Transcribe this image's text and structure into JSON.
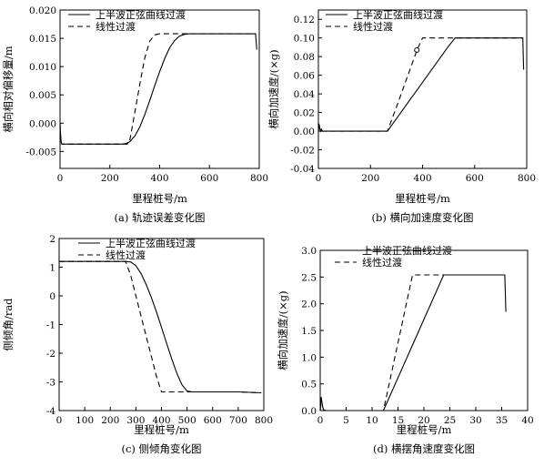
{
  "chart_data": [
    {
      "id": "a",
      "type": "line",
      "caption": "(a) 轨迹误差变化图",
      "xlabel": "里程桩号/m",
      "ylabel": "横向相对偏移量/m",
      "xlim": [
        0,
        800
      ],
      "ylim": [
        -0.008,
        0.02
      ],
      "xticks": [
        0,
        200,
        400,
        600,
        800
      ],
      "yticks": [
        -0.005,
        0.0,
        0.005,
        0.01,
        0.015,
        0.02
      ],
      "xtick_labels": [
        "0",
        "200",
        "400",
        "600",
        "800"
      ],
      "ytick_labels": [
        "-0.005",
        "0.000",
        "0.005",
        "0.010",
        "0.015",
        "0.020"
      ],
      "legend_position": "top-left",
      "series": [
        {
          "name": "上半波正弦曲线过渡",
          "style": "solid",
          "x": [
            0,
            2,
            5,
            8,
            12,
            20,
            50,
            100,
            150,
            200,
            250,
            265,
            280,
            300,
            320,
            340,
            360,
            380,
            400,
            420,
            440,
            460,
            480,
            500,
            520,
            540,
            560,
            600,
            650,
            700,
            750,
            780,
            785,
            790
          ],
          "y": [
            0.0,
            -0.002,
            -0.0035,
            -0.0037,
            -0.0037,
            -0.0037,
            -0.0037,
            -0.0037,
            -0.0037,
            -0.0037,
            -0.0037,
            -0.0036,
            -0.0033,
            -0.0023,
            -0.0007,
            0.0015,
            0.004,
            0.0066,
            0.0091,
            0.0114,
            0.0133,
            0.0146,
            0.0154,
            0.0157,
            0.0158,
            0.0158,
            0.0158,
            0.0158,
            0.0158,
            0.0158,
            0.0158,
            0.0158,
            0.0158,
            0.013
          ]
        },
        {
          "name": "线性过渡",
          "style": "dashed",
          "x": [
            0,
            2,
            5,
            8,
            12,
            50,
            100,
            150,
            200,
            250,
            270,
            280,
            300,
            320,
            340,
            360,
            380,
            400,
            420,
            450,
            500,
            600,
            700,
            785
          ],
          "y": [
            0.0,
            -0.002,
            -0.0035,
            -0.0037,
            -0.0037,
            -0.0037,
            -0.0037,
            -0.0037,
            -0.0037,
            -0.0037,
            -0.0037,
            -0.0031,
            0.0018,
            0.0068,
            0.0115,
            0.0145,
            0.0156,
            0.0158,
            0.0158,
            0.0158,
            0.0158,
            0.0158,
            0.0158,
            0.0158
          ]
        }
      ]
    },
    {
      "id": "b",
      "type": "line",
      "caption": "(b) 横向加速度变化图",
      "xlabel": "里程桩号/m",
      "ylabel": "横向加速度/(×g)",
      "xlim": [
        0,
        800
      ],
      "ylim": [
        -0.04,
        0.13
      ],
      "xticks": [
        0,
        200,
        400,
        600,
        800
      ],
      "yticks": [
        -0.04,
        -0.02,
        0.0,
        0.02,
        0.04,
        0.06,
        0.08,
        0.1,
        0.12
      ],
      "xtick_labels": [
        "0",
        "200",
        "400",
        "600",
        "800"
      ],
      "ytick_labels": [
        "-0.04",
        "-0.02",
        "0.00",
        "0.02",
        "0.04",
        "0.06",
        "0.08",
        "0.10",
        "0.12"
      ],
      "legend_position": "top-left",
      "series": [
        {
          "name": "上半波正弦曲线过渡",
          "style": "solid",
          "x": [
            0,
            2,
            5,
            8,
            12,
            15,
            20,
            60,
            120,
            200,
            265,
            300,
            350,
            400,
            450,
            500,
            525,
            600,
            700,
            780,
            785,
            788
          ],
          "y": [
            0.0,
            0.008,
            0.004,
            0.0,
            0.002,
            0.0,
            0.0,
            0.0,
            0.0,
            0.0,
            0.0,
            0.0135,
            0.033,
            0.0524,
            0.0718,
            0.0912,
            0.1,
            0.1,
            0.1,
            0.1,
            0.1,
            0.066
          ]
        },
        {
          "name": "线性过渡",
          "style": "dashed",
          "x": [
            0,
            2,
            5,
            8,
            12,
            15,
            20,
            100,
            200,
            265,
            300,
            340,
            380,
            400,
            450,
            550,
            650,
            785
          ],
          "y": [
            0.0,
            0.008,
            0.004,
            0.0,
            0.002,
            0.0,
            0.0,
            0.0,
            0.0,
            0.0,
            0.026,
            0.057,
            0.088,
            0.1,
            0.1,
            0.1,
            0.1,
            0.1
          ]
        }
      ],
      "markers": [
        {
          "x": 378,
          "y": 0.087
        }
      ]
    },
    {
      "id": "c",
      "type": "line",
      "caption": "(c) 侧倾角变化图",
      "xlabel": "里程桩号/m",
      "ylabel": "侧倾角/rad",
      "xlim": [
        0,
        800
      ],
      "ylim": [
        -4,
        2
      ],
      "xticks": [
        0,
        100,
        200,
        300,
        400,
        500,
        600,
        700,
        800
      ],
      "yticks": [
        -4,
        -3,
        -2,
        -1,
        0,
        1,
        2
      ],
      "xtick_labels": [
        "0",
        "100",
        "200",
        "300",
        "400",
        "500",
        "600",
        "700",
        "800"
      ],
      "ytick_labels": [
        "-4",
        "-3",
        "-2",
        "-1",
        "0",
        "1",
        "2"
      ],
      "legend_position": "top-right",
      "series": [
        {
          "name": "上半波正弦曲线过渡",
          "style": "solid",
          "x": [
            0,
            100,
            200,
            260,
            280,
            300,
            320,
            340,
            360,
            380,
            400,
            420,
            440,
            460,
            480,
            500,
            520,
            600,
            700,
            790
          ],
          "y": [
            1.2,
            1.2,
            1.2,
            1.2,
            1.18,
            1.05,
            0.78,
            0.4,
            -0.05,
            -0.55,
            -1.1,
            -1.65,
            -2.2,
            -2.7,
            -3.1,
            -3.32,
            -3.35,
            -3.35,
            -3.35,
            -3.38
          ]
        },
        {
          "name": "线性过渡",
          "style": "dashed",
          "x": [
            0,
            100,
            200,
            260,
            280,
            300,
            320,
            340,
            360,
            380,
            400,
            450,
            500,
            600,
            700,
            790
          ],
          "y": [
            1.2,
            1.2,
            1.2,
            1.2,
            0.7,
            0.0,
            -0.7,
            -1.4,
            -2.1,
            -2.8,
            -3.35,
            -3.35,
            -3.35,
            -3.35,
            -3.35,
            -3.38
          ]
        }
      ]
    },
    {
      "id": "d",
      "type": "line",
      "caption": "(d) 横摆角速度变化图",
      "xlabel": "里程桩号/m",
      "ylabel": "横向加速度/(×g)",
      "xlim": [
        0,
        40
      ],
      "ylim": [
        0,
        3.0
      ],
      "xticks": [
        0,
        5,
        10,
        15,
        20,
        25,
        30,
        35,
        40
      ],
      "yticks": [
        0,
        0.5,
        1.0,
        1.5,
        2.0,
        2.5,
        3.0
      ],
      "xtick_labels": [
        "0",
        "5",
        "10",
        "15",
        "20",
        "25",
        "30",
        "35",
        "40"
      ],
      "ytick_labels": [
        "0.0",
        "0.5",
        "1.0",
        "1.5",
        "2.0",
        "2.5",
        "3.0"
      ],
      "legend_position": "top-right",
      "series": [
        {
          "name": "上半波正弦曲线过渡",
          "style": "solid",
          "x": [
            0,
            0.2,
            0.4,
            0.6,
            1,
            5,
            10,
            12.2,
            18,
            23.8,
            28,
            33,
            35.6,
            35.8
          ],
          "y": [
            0,
            0.25,
            0.1,
            0.02,
            0,
            0,
            0,
            0,
            1.27,
            2.54,
            2.54,
            2.54,
            2.54,
            1.85
          ]
        },
        {
          "name": "线性过渡",
          "style": "dashed",
          "x": [
            0,
            0.2,
            0.4,
            0.6,
            1,
            5,
            10,
            12.2,
            15,
            17.8,
            19,
            25,
            30,
            35.5
          ],
          "y": [
            0,
            0.25,
            0.1,
            0.02,
            0,
            0,
            0,
            0,
            1.27,
            2.54,
            2.54,
            2.54,
            2.54,
            2.54
          ]
        }
      ]
    }
  ]
}
